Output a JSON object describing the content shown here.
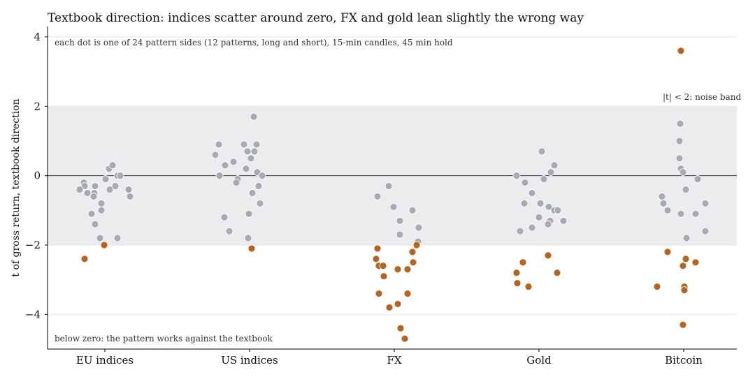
{
  "chart_data": {
    "type": "scatter",
    "title": "Textbook direction: indices scatter around zero, FX and gold lean slightly the wrong way",
    "subtitle": "each dot is one of 24 pattern sides (12 patterns, long and short), 15-min candles, 45 min hold",
    "xlabel": "",
    "ylabel": "t of gross return, textbook direction",
    "categories": [
      "EU indices",
      "US indices",
      "FX",
      "Gold",
      "Bitcoin"
    ],
    "ylim": [
      -5,
      4.3
    ],
    "yticks": [
      4,
      2,
      0,
      -2,
      -4
    ],
    "ytick_labels": [
      "4",
      "2",
      "0",
      "−2",
      "−4"
    ],
    "noise_band": [
      -2,
      2
    ],
    "noise_band_label": "|t| < 2: noise band",
    "bottom_annotation": "below zero: the pattern works against the textbook",
    "colors": {
      "noise_points": "#a8aab3",
      "significant_points": "#b5651d",
      "band": "#ebecee",
      "zero_line": "#333333"
    },
    "series": [
      {
        "category": "EU indices",
        "points": [
          {
            "dx": -0.3,
            "t": -0.2
          },
          {
            "dx": -0.29,
            "t": -0.3
          },
          {
            "dx": -0.25,
            "t": -0.5
          },
          {
            "dx": -0.36,
            "t": -0.4
          },
          {
            "dx": -0.14,
            "t": -0.3
          },
          {
            "dx": -0.15,
            "t": -0.5
          },
          {
            "dx": -0.16,
            "t": -0.6
          },
          {
            "dx": -0.19,
            "t": -1.1
          },
          {
            "dx": -0.05,
            "t": -0.8
          },
          {
            "dx": -0.05,
            "t": -1.0
          },
          {
            "dx": -0.14,
            "t": -1.4
          },
          {
            "dx": -0.07,
            "t": -1.8
          },
          {
            "dx": 0.01,
            "t": -0.1
          },
          {
            "dx": 0.06,
            "t": 0.2
          },
          {
            "dx": 0.11,
            "t": 0.3
          },
          {
            "dx": 0.07,
            "t": -0.4
          },
          {
            "dx": 0.15,
            "t": -0.3
          },
          {
            "dx": 0.18,
            "t": 0.0
          },
          {
            "dx": 0.22,
            "t": 0.0
          },
          {
            "dx": 0.34,
            "t": -0.4
          },
          {
            "dx": 0.36,
            "t": -0.6
          },
          {
            "dx": 0.18,
            "t": -1.8
          },
          {
            "dx": -0.29,
            "t": -2.4
          },
          {
            "dx": -0.01,
            "t": -2.0
          }
        ]
      },
      {
        "category": "US indices",
        "points": [
          {
            "dx": -0.44,
            "t": 0.9
          },
          {
            "dx": -0.49,
            "t": 0.6
          },
          {
            "dx": -0.35,
            "t": 0.3
          },
          {
            "dx": -0.43,
            "t": 0.0
          },
          {
            "dx": -0.23,
            "t": 0.4
          },
          {
            "dx": -0.08,
            "t": 0.9
          },
          {
            "dx": -0.03,
            "t": 0.7
          },
          {
            "dx": 0.06,
            "t": 1.7
          },
          {
            "dx": 0.1,
            "t": 0.9
          },
          {
            "dx": 0.07,
            "t": 0.7
          },
          {
            "dx": 0.02,
            "t": 0.5
          },
          {
            "dx": -0.05,
            "t": 0.2
          },
          {
            "dx": -0.17,
            "t": -0.1
          },
          {
            "dx": -0.19,
            "t": -0.2
          },
          {
            "dx": 0.11,
            "t": 0.1
          },
          {
            "dx": 0.18,
            "t": 0.0
          },
          {
            "dx": 0.13,
            "t": -0.3
          },
          {
            "dx": 0.04,
            "t": -0.5
          },
          {
            "dx": 0.15,
            "t": -0.8
          },
          {
            "dx": -0.36,
            "t": -1.2
          },
          {
            "dx": -0.29,
            "t": -1.6
          },
          {
            "dx": -0.01,
            "t": -1.1
          },
          {
            "dx": -0.02,
            "t": -1.8
          },
          {
            "dx": 0.03,
            "t": -2.1
          }
        ]
      },
      {
        "category": "FX",
        "points": [
          {
            "dx": -0.24,
            "t": -0.6
          },
          {
            "dx": -0.08,
            "t": -0.3
          },
          {
            "dx": -0.01,
            "t": -0.9
          },
          {
            "dx": 0.08,
            "t": -1.3
          },
          {
            "dx": 0.26,
            "t": -1.0
          },
          {
            "dx": 0.35,
            "t": -1.5
          },
          {
            "dx": 0.08,
            "t": -1.7
          },
          {
            "dx": 0.34,
            "t": -1.9
          },
          {
            "dx": -0.24,
            "t": -2.1
          },
          {
            "dx": -0.26,
            "t": -2.4
          },
          {
            "dx": -0.22,
            "t": -2.6
          },
          {
            "dx": -0.16,
            "t": -2.6
          },
          {
            "dx": -0.15,
            "t": -2.9
          },
          {
            "dx": 0.05,
            "t": -2.7
          },
          {
            "dx": 0.19,
            "t": -2.7
          },
          {
            "dx": 0.26,
            "t": -2.2
          },
          {
            "dx": 0.27,
            "t": -2.5
          },
          {
            "dx": 0.32,
            "t": -2.0
          },
          {
            "dx": -0.22,
            "t": -3.4
          },
          {
            "dx": 0.19,
            "t": -3.4
          },
          {
            "dx": 0.05,
            "t": -3.7
          },
          {
            "dx": -0.07,
            "t": -3.8
          },
          {
            "dx": 0.09,
            "t": -4.4
          },
          {
            "dx": 0.15,
            "t": -4.7
          }
        ]
      },
      {
        "category": "Gold",
        "points": [
          {
            "dx": -0.32,
            "t": 0.0
          },
          {
            "dx": -0.2,
            "t": -0.2
          },
          {
            "dx": 0.04,
            "t": 0.7
          },
          {
            "dx": 0.17,
            "t": 0.1
          },
          {
            "dx": 0.22,
            "t": 0.3
          },
          {
            "dx": 0.07,
            "t": -0.1
          },
          {
            "dx": -0.1,
            "t": -0.5
          },
          {
            "dx": -0.21,
            "t": -0.8
          },
          {
            "dx": 0.02,
            "t": -0.8
          },
          {
            "dx": 0.14,
            "t": -0.9
          },
          {
            "dx": 0.22,
            "t": -1.0
          },
          {
            "dx": 0.27,
            "t": -1.0
          },
          {
            "dx": 0.0,
            "t": -1.2
          },
          {
            "dx": 0.16,
            "t": -1.3
          },
          {
            "dx": 0.35,
            "t": -1.3
          },
          {
            "dx": 0.13,
            "t": -1.4
          },
          {
            "dx": -0.1,
            "t": -1.5
          },
          {
            "dx": -0.27,
            "t": -1.6
          },
          {
            "dx": -0.23,
            "t": -2.5
          },
          {
            "dx": 0.13,
            "t": -2.3
          },
          {
            "dx": -0.32,
            "t": -2.8
          },
          {
            "dx": 0.26,
            "t": -2.8
          },
          {
            "dx": -0.31,
            "t": -3.1
          },
          {
            "dx": -0.15,
            "t": -3.2
          }
        ]
      },
      {
        "category": "Bitcoin",
        "points": [
          {
            "dx": -0.04,
            "t": 3.6
          },
          {
            "dx": -0.05,
            "t": 1.5
          },
          {
            "dx": -0.06,
            "t": 1.0
          },
          {
            "dx": -0.06,
            "t": 0.5
          },
          {
            "dx": -0.04,
            "t": 0.2
          },
          {
            "dx": -0.01,
            "t": 0.1
          },
          {
            "dx": 0.2,
            "t": -0.1
          },
          {
            "dx": 0.03,
            "t": -0.4
          },
          {
            "dx": -0.31,
            "t": -0.6
          },
          {
            "dx": -0.29,
            "t": -0.8
          },
          {
            "dx": 0.31,
            "t": -0.8
          },
          {
            "dx": -0.23,
            "t": -1.0
          },
          {
            "dx": -0.04,
            "t": -1.1
          },
          {
            "dx": 0.17,
            "t": -1.1
          },
          {
            "dx": 0.31,
            "t": -1.6
          },
          {
            "dx": 0.04,
            "t": -1.8
          },
          {
            "dx": -0.23,
            "t": -2.2
          },
          {
            "dx": 0.03,
            "t": -2.4
          },
          {
            "dx": 0.17,
            "t": -2.5
          },
          {
            "dx": -0.01,
            "t": -2.6
          },
          {
            "dx": -0.38,
            "t": -3.2
          },
          {
            "dx": 0.01,
            "t": -3.2
          },
          {
            "dx": 0.01,
            "t": -3.3
          },
          {
            "dx": -0.01,
            "t": -4.3
          }
        ]
      }
    ]
  }
}
